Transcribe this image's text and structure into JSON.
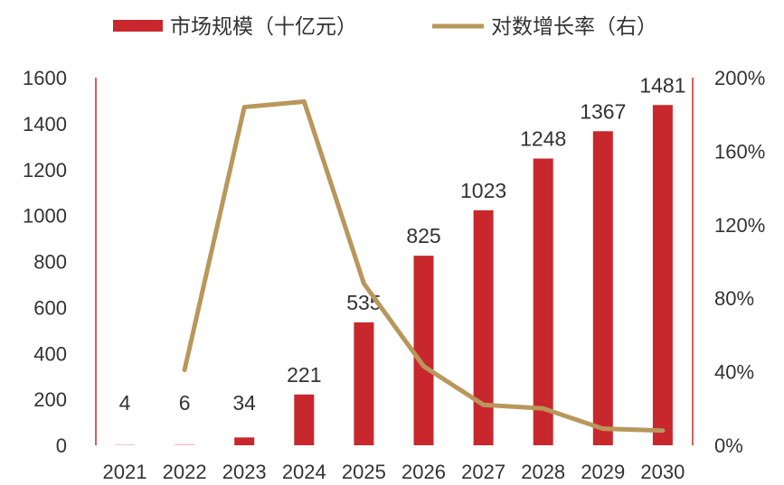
{
  "chart_data": {
    "type": "bar+line",
    "categories": [
      "2021",
      "2022",
      "2023",
      "2024",
      "2025",
      "2026",
      "2027",
      "2028",
      "2029",
      "2030"
    ],
    "series": [
      {
        "name": "市场规模（十亿元）",
        "type": "bar",
        "axis": "left",
        "values": [
          4,
          6,
          34,
          221,
          535,
          825,
          1023,
          1248,
          1367,
          1481
        ],
        "labels": [
          "4",
          "6",
          "34",
          "221",
          "535",
          "825",
          "1023",
          "1248",
          "1367",
          "1481"
        ]
      },
      {
        "name": "对数增长率（右）",
        "type": "line",
        "axis": "right",
        "values": [
          null,
          41,
          184,
          187,
          88,
          43,
          22,
          20,
          9,
          8
        ]
      }
    ],
    "ylim": [
      0,
      1600
    ],
    "yticks": [
      "0",
      "200",
      "400",
      "600",
      "800",
      "1000",
      "1200",
      "1400",
      "1600"
    ],
    "y2lim": [
      0,
      200
    ],
    "y2ticks": [
      "0%",
      "40%",
      "80%",
      "120%",
      "160%",
      "200%"
    ],
    "legend": "top",
    "grid": false,
    "colors": {
      "bar": "#C8282D",
      "line": "#B9975B",
      "axis": "#C8282D"
    }
  }
}
